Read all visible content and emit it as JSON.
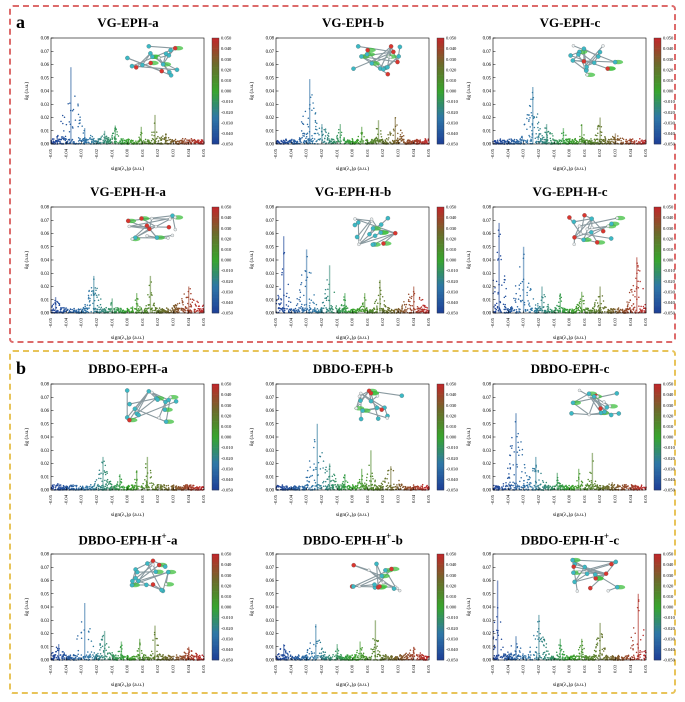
{
  "panels": [
    {
      "id": "a",
      "label": "a"
    },
    {
      "id": "b",
      "label": "b"
    }
  ],
  "common": {
    "xlabel": "sign(λ₂)ρ (a.u.)",
    "ylabel": "δg (a.u.)",
    "xlim": [
      -0.05,
      0.05
    ],
    "ylim": [
      0,
      0.08
    ],
    "x_ticks": [
      "-0.05",
      "-0.04",
      "-0.03",
      "-0.02",
      "-0.01",
      "0.00",
      "0.01",
      "0.02",
      "0.03",
      "0.04",
      "0.05"
    ],
    "y_ticks": [
      "0.00",
      "0.01",
      "0.02",
      "0.03",
      "0.04",
      "0.05",
      "0.06",
      "0.07",
      "0.08"
    ],
    "colorbar_ticks": [
      "0.050",
      "0.040",
      "0.030",
      "0.020",
      "0.010",
      "0.000",
      "-0.010",
      "-0.020",
      "-0.030",
      "-0.040",
      "-0.050"
    ],
    "colorbar_colors": [
      "#c2252a",
      "#6c6b2b",
      "#37a52d",
      "#2f77a7",
      "#1d3f97"
    ]
  },
  "chart_data": [
    {
      "panel": "a",
      "title": "VG-EPH-a",
      "type": "scatter",
      "peaks": [
        [
          -0.037,
          0.058,
          0.01
        ],
        [
          -0.028,
          0.012,
          0.01
        ],
        [
          -0.015,
          0.01,
          0.006
        ],
        [
          -0.008,
          0.014,
          0.004
        ],
        [
          0.009,
          0.013,
          0.004
        ],
        [
          0.018,
          0.022,
          0.004
        ],
        [
          0.025,
          0.008,
          0.008
        ]
      ]
    },
    {
      "panel": "a",
      "title": "VG-EPH-b",
      "type": "scatter",
      "peaks": [
        [
          -0.028,
          0.049,
          0.008
        ],
        [
          -0.02,
          0.015,
          0.01
        ],
        [
          -0.008,
          0.015,
          0.004
        ],
        [
          0.006,
          0.013,
          0.004
        ],
        [
          0.017,
          0.018,
          0.004
        ],
        [
          0.028,
          0.02,
          0.008
        ]
      ]
    },
    {
      "panel": "a",
      "title": "VG-EPH-c",
      "type": "scatter",
      "peaks": [
        [
          -0.024,
          0.043,
          0.009
        ],
        [
          -0.015,
          0.015,
          0.008
        ],
        [
          -0.004,
          0.012,
          0.004
        ],
        [
          0.008,
          0.015,
          0.004
        ],
        [
          0.02,
          0.02,
          0.005
        ],
        [
          0.03,
          0.008,
          0.01
        ]
      ]
    },
    {
      "panel": "a",
      "title": "VG-EPH-H-a",
      "type": "scatter",
      "peaks": [
        [
          -0.047,
          0.012,
          0.006
        ],
        [
          -0.022,
          0.028,
          0.008
        ],
        [
          -0.01,
          0.011,
          0.004
        ],
        [
          0.006,
          0.015,
          0.004
        ],
        [
          0.015,
          0.028,
          0.004
        ],
        [
          0.04,
          0.02,
          0.014
        ]
      ]
    },
    {
      "panel": "a",
      "title": "VG-EPH-H-b",
      "type": "scatter",
      "peaks": [
        [
          -0.045,
          0.058,
          0.006
        ],
        [
          -0.03,
          0.048,
          0.008
        ],
        [
          -0.015,
          0.036,
          0.006
        ],
        [
          -0.005,
          0.015,
          0.004
        ],
        [
          0.008,
          0.015,
          0.004
        ],
        [
          0.018,
          0.025,
          0.005
        ],
        [
          0.04,
          0.02,
          0.012
        ]
      ]
    },
    {
      "panel": "a",
      "title": "VG-EPH-H-c",
      "type": "scatter",
      "peaks": [
        [
          -0.046,
          0.068,
          0.007
        ],
        [
          -0.03,
          0.05,
          0.009
        ],
        [
          -0.018,
          0.02,
          0.006
        ],
        [
          -0.006,
          0.015,
          0.004
        ],
        [
          0.008,
          0.016,
          0.005
        ],
        [
          0.02,
          0.02,
          0.006
        ],
        [
          0.044,
          0.042,
          0.008
        ]
      ]
    },
    {
      "panel": "b",
      "title": "DBDO-EPH-a",
      "type": "scatter",
      "peaks": [
        [
          -0.045,
          0.005,
          0.008
        ],
        [
          -0.016,
          0.025,
          0.007
        ],
        [
          -0.005,
          0.012,
          0.004
        ],
        [
          0.006,
          0.015,
          0.004
        ],
        [
          0.013,
          0.025,
          0.005
        ],
        [
          0.03,
          0.004,
          0.01
        ]
      ]
    },
    {
      "panel": "b",
      "title": "DBDO-EPH-b",
      "type": "scatter",
      "peaks": [
        [
          -0.023,
          0.05,
          0.009
        ],
        [
          -0.015,
          0.02,
          0.008
        ],
        [
          -0.005,
          0.012,
          0.004
        ],
        [
          0.006,
          0.016,
          0.004
        ],
        [
          0.012,
          0.03,
          0.004
        ],
        [
          0.025,
          0.018,
          0.01
        ]
      ]
    },
    {
      "panel": "b",
      "title": "DBDO-EPH-c",
      "type": "scatter",
      "peaks": [
        [
          -0.035,
          0.058,
          0.009
        ],
        [
          -0.022,
          0.025,
          0.009
        ],
        [
          -0.008,
          0.013,
          0.004
        ],
        [
          0.006,
          0.016,
          0.004
        ],
        [
          0.015,
          0.028,
          0.004
        ],
        [
          0.028,
          0.006,
          0.01
        ]
      ]
    },
    {
      "panel": "b",
      "title": "DBDO-EPH-H+-a",
      "title_main": "DBDO-EPH-H",
      "title_sup": "+",
      "title_tail": "-a",
      "type": "scatter",
      "peaks": [
        [
          -0.045,
          0.012,
          0.008
        ],
        [
          -0.028,
          0.043,
          0.008
        ],
        [
          -0.015,
          0.022,
          0.007
        ],
        [
          -0.004,
          0.014,
          0.004
        ],
        [
          0.008,
          0.016,
          0.004
        ],
        [
          0.018,
          0.026,
          0.004
        ],
        [
          0.04,
          0.01,
          0.01
        ]
      ]
    },
    {
      "panel": "b",
      "title": "DBDO-EPH-H+-b",
      "title_main": "DBDO-EPH-H",
      "title_sup": "+",
      "title_tail": "-b",
      "type": "scatter",
      "peaks": [
        [
          -0.045,
          0.012,
          0.008
        ],
        [
          -0.024,
          0.027,
          0.008
        ],
        [
          -0.01,
          0.012,
          0.004
        ],
        [
          0.005,
          0.014,
          0.004
        ],
        [
          0.015,
          0.03,
          0.004
        ],
        [
          0.04,
          0.01,
          0.01
        ]
      ]
    },
    {
      "panel": "b",
      "title": "DBDO-EPH-H+-c",
      "title_main": "DBDO-EPH-H",
      "title_sup": "+",
      "title_tail": "-c",
      "type": "scatter",
      "peaks": [
        [
          -0.047,
          0.06,
          0.006
        ],
        [
          -0.035,
          0.018,
          0.008
        ],
        [
          -0.02,
          0.034,
          0.008
        ],
        [
          -0.006,
          0.016,
          0.004
        ],
        [
          0.008,
          0.016,
          0.004
        ],
        [
          0.02,
          0.028,
          0.005
        ],
        [
          0.045,
          0.05,
          0.007
        ]
      ]
    }
  ]
}
